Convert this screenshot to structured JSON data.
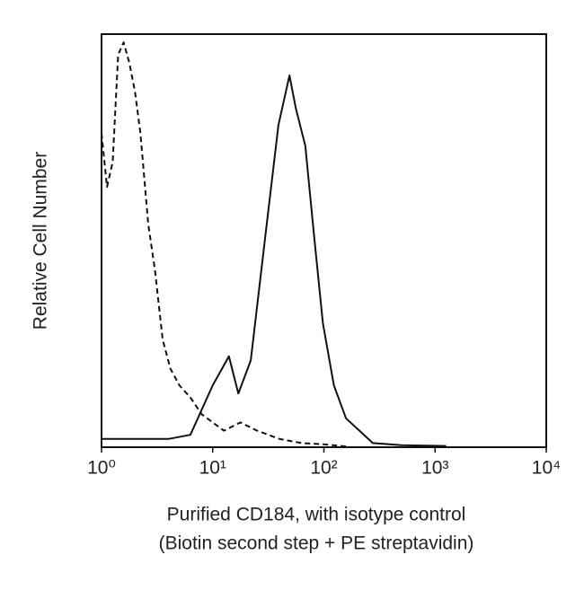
{
  "chart_data": {
    "type": "line",
    "xlabel": [
      "Purified CD184, with isotype control",
      "(Biotin second step + PE streptavidin)"
    ],
    "ylabel": "Relative Cell Number",
    "xscale": "log",
    "xlim": [
      1,
      10000
    ],
    "xticks": [
      {
        "value": 1,
        "label": "10⁰"
      },
      {
        "value": 10,
        "label": "10¹"
      },
      {
        "value": 100,
        "label": "10²"
      },
      {
        "value": 1000,
        "label": "10³"
      },
      {
        "value": 10000,
        "label": "10⁴"
      }
    ],
    "ylim": [
      0,
      100
    ],
    "series": [
      {
        "color": "#111111",
        "dash": "solid",
        "x": [
          1,
          2,
          4,
          6.3,
          10,
          14,
          17,
          22,
          30,
          39,
          49,
          56,
          68,
          81,
          98,
          123,
          158,
          209,
          275,
          500,
          1260
        ],
        "values": [
          2,
          2,
          2,
          3,
          15,
          22,
          13,
          21,
          52,
          78,
          90,
          82,
          73,
          52,
          30,
          15,
          7,
          4,
          1,
          0.5,
          0.3
        ]
      },
      {
        "color": "#111111",
        "dash": "dashed",
        "x": [
          1,
          1.12,
          1.26,
          1.41,
          1.58,
          1.78,
          2,
          2.24,
          2.63,
          3.02,
          3.55,
          4.17,
          5.01,
          6.31,
          7.94,
          10,
          12.6,
          17.8,
          25.1,
          39.8,
          63.1,
          100,
          158
        ],
        "values": [
          76,
          63,
          69,
          95,
          98,
          93,
          86,
          76,
          54,
          43,
          26,
          19,
          15,
          12,
          8,
          6,
          4,
          6,
          4,
          2,
          1,
          0.7,
          0.2
        ]
      }
    ]
  }
}
